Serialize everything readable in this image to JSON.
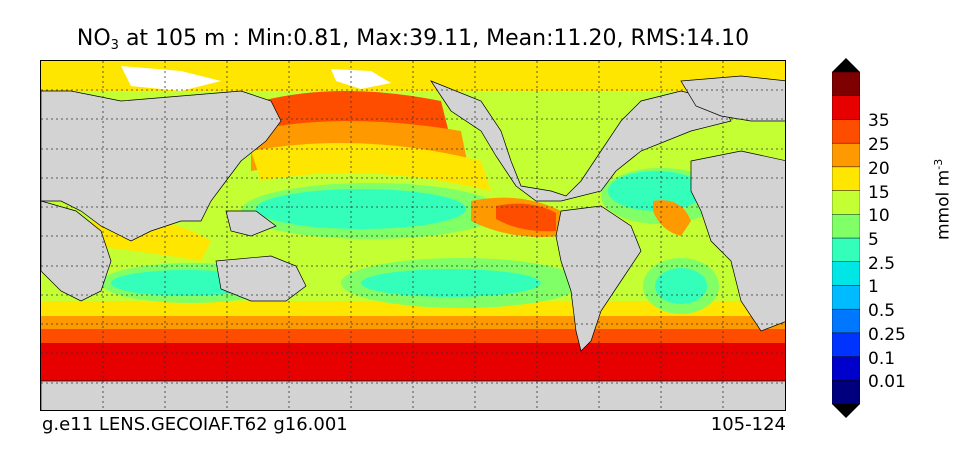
{
  "title": {
    "var_main": "NO",
    "var_sub": "3",
    "rest": " at 105 m : Min:0.81, Max:39.11, Mean:11.20, RMS:14.10"
  },
  "footer": {
    "case_name": "g.e11 LENS.GECOIAF.T62 g16.001",
    "years": "105-124"
  },
  "colorbar": {
    "units_main": "mmol m",
    "units_sup": "-3",
    "tick_labels": [
      "0.01",
      "0.1",
      "0.25",
      "0.5",
      "1",
      "2.5",
      "5",
      "10",
      "15",
      "20",
      "25",
      "35"
    ],
    "colors": [
      "#00007f",
      "#0000cc",
      "#0033ff",
      "#0077ff",
      "#00bbff",
      "#00e6e6",
      "#33ffbb",
      "#80ff66",
      "#c3ff33",
      "#ffe600",
      "#ff9900",
      "#ff4d00",
      "#e60000",
      "#7f0000"
    ],
    "land_color": "#d3d3d3"
  }
}
